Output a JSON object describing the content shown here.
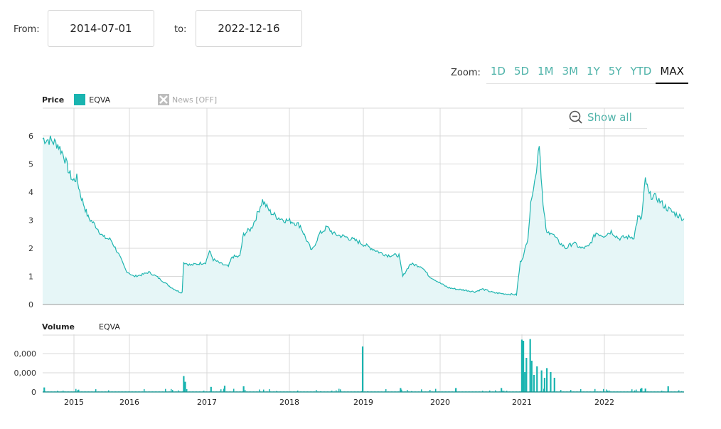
{
  "range": {
    "from_label": "From:",
    "from_value": "2014-07-01",
    "to_label": "to:",
    "to_value": "2022-12-16"
  },
  "zoom": {
    "label": "Zoom:",
    "buttons": [
      "1D",
      "5D",
      "1M",
      "3M",
      "1Y",
      "5Y",
      "YTD",
      "MAX"
    ],
    "active": "MAX"
  },
  "show_all_label": "Show all",
  "price_legend": {
    "title": "Price",
    "series": "EQVA"
  },
  "news_toggle": "News [OFF]",
  "volume_legend": {
    "title": "Volume",
    "series": "EQVA"
  },
  "colors": {
    "line": "#1fb5b0",
    "fill": "#e6f6f7",
    "swatch": "#19b4b0",
    "accent": "#4fb3a9",
    "grid": "#d9d9d9"
  },
  "chart_data": [
    {
      "type": "area",
      "title": "Price",
      "series_name": "EQVA",
      "xlabel": "",
      "ylabel": "",
      "ylim": [
        0,
        6
      ],
      "y_ticks": [
        0,
        1,
        2,
        3,
        4,
        5,
        6
      ],
      "x_ticks": [
        "2015",
        "2016",
        "2017",
        "2018",
        "2019",
        "2020",
        "2021",
        "2022"
      ],
      "grid": true,
      "x": [
        2014.5,
        2014.6,
        2014.7,
        2014.78,
        2014.85,
        2014.9,
        2014.95,
        2015.0,
        2015.05,
        2015.1,
        2015.2,
        2015.3,
        2015.4,
        2015.5,
        2015.6,
        2015.7,
        2015.8,
        2015.9,
        2016.0,
        2016.1,
        2016.2,
        2016.3,
        2016.34,
        2016.36,
        2016.45,
        2016.55,
        2016.65,
        2016.7,
        2016.75,
        2016.85,
        2016.95,
        2017.0,
        2017.1,
        2017.15,
        2017.25,
        2017.3,
        2017.4,
        2017.5,
        2017.6,
        2017.7,
        2017.8,
        2017.9,
        2017.98,
        2018.05,
        2018.15,
        2018.25,
        2018.35,
        2018.5,
        2018.65,
        2018.8,
        2018.95,
        2019.05,
        2019.2,
        2019.25,
        2019.35,
        2019.5,
        2019.6,
        2019.75,
        2019.85,
        2019.95,
        2020.1,
        2020.2,
        2020.3,
        2020.45,
        2020.6,
        2020.75,
        2020.8,
        2020.85,
        2020.9,
        2020.95,
        2021.0,
        2021.05,
        2021.1,
        2021.15,
        2021.2,
        2021.3,
        2021.4,
        2021.5,
        2021.6,
        2021.7,
        2021.8,
        2021.9,
        2022.0,
        2022.1,
        2022.2,
        2022.3,
        2022.35,
        2022.4,
        2022.45,
        2022.5,
        2022.6,
        2022.7,
        2022.8,
        2022.96
      ],
      "values": [
        5.9,
        5.85,
        5.7,
        5.3,
        4.7,
        4.4,
        4.5,
        3.9,
        3.5,
        3.1,
        2.8,
        2.4,
        2.3,
        1.8,
        1.2,
        1.0,
        1.05,
        1.15,
        1.0,
        0.8,
        0.6,
        0.45,
        0.43,
        1.5,
        1.4,
        1.45,
        1.5,
        1.9,
        1.6,
        1.45,
        1.35,
        1.7,
        1.7,
        2.5,
        2.7,
        3.0,
        3.7,
        3.3,
        3.1,
        3.0,
        2.95,
        2.8,
        2.3,
        1.9,
        2.5,
        2.75,
        2.5,
        2.4,
        2.25,
        2.05,
        1.85,
        1.75,
        1.75,
        1.0,
        1.45,
        1.35,
        1.0,
        0.75,
        0.6,
        0.55,
        0.5,
        0.45,
        0.55,
        0.42,
        0.38,
        0.35,
        1.5,
        1.8,
        2.4,
        3.9,
        4.5,
        5.8,
        3.5,
        2.5,
        2.6,
        2.25,
        2.0,
        2.2,
        2.0,
        2.05,
        2.55,
        2.45,
        2.6,
        2.35,
        2.4,
        2.4,
        3.1,
        3.05,
        4.45,
        3.9,
        3.8,
        3.5,
        3.3,
        3.05
      ]
    },
    {
      "type": "bar",
      "title": "Volume",
      "series_name": "EQVA",
      "y_ticks": [
        "0",
        "0,000",
        "0,000"
      ],
      "x_ticks": [
        "2015",
        "2016",
        "2017",
        "2018",
        "2019",
        "2020",
        "2021",
        "2022"
      ],
      "grid": true,
      "note": "relative heights (0-1 of axis); y-tick labels are truncated in the screenshot",
      "x": [
        2014.52,
        2016.36,
        2016.38,
        2016.72,
        2016.9,
        2017.15,
        2018.72,
        2019.22,
        2019.95,
        2020.55,
        2020.82,
        2020.84,
        2020.86,
        2020.88,
        2020.93,
        2020.95,
        2020.98,
        2021.02,
        2021.08,
        2021.12,
        2021.15,
        2021.2,
        2021.25,
        2022.4,
        2022.45,
        2022.75
      ],
      "values": [
        0.08,
        0.28,
        0.18,
        0.09,
        0.11,
        0.1,
        0.8,
        0.07,
        0.07,
        0.07,
        0.92,
        0.9,
        0.35,
        0.6,
        0.93,
        0.55,
        0.3,
        0.45,
        0.38,
        0.25,
        0.42,
        0.35,
        0.25,
        0.07,
        0.06,
        0.1
      ]
    }
  ]
}
